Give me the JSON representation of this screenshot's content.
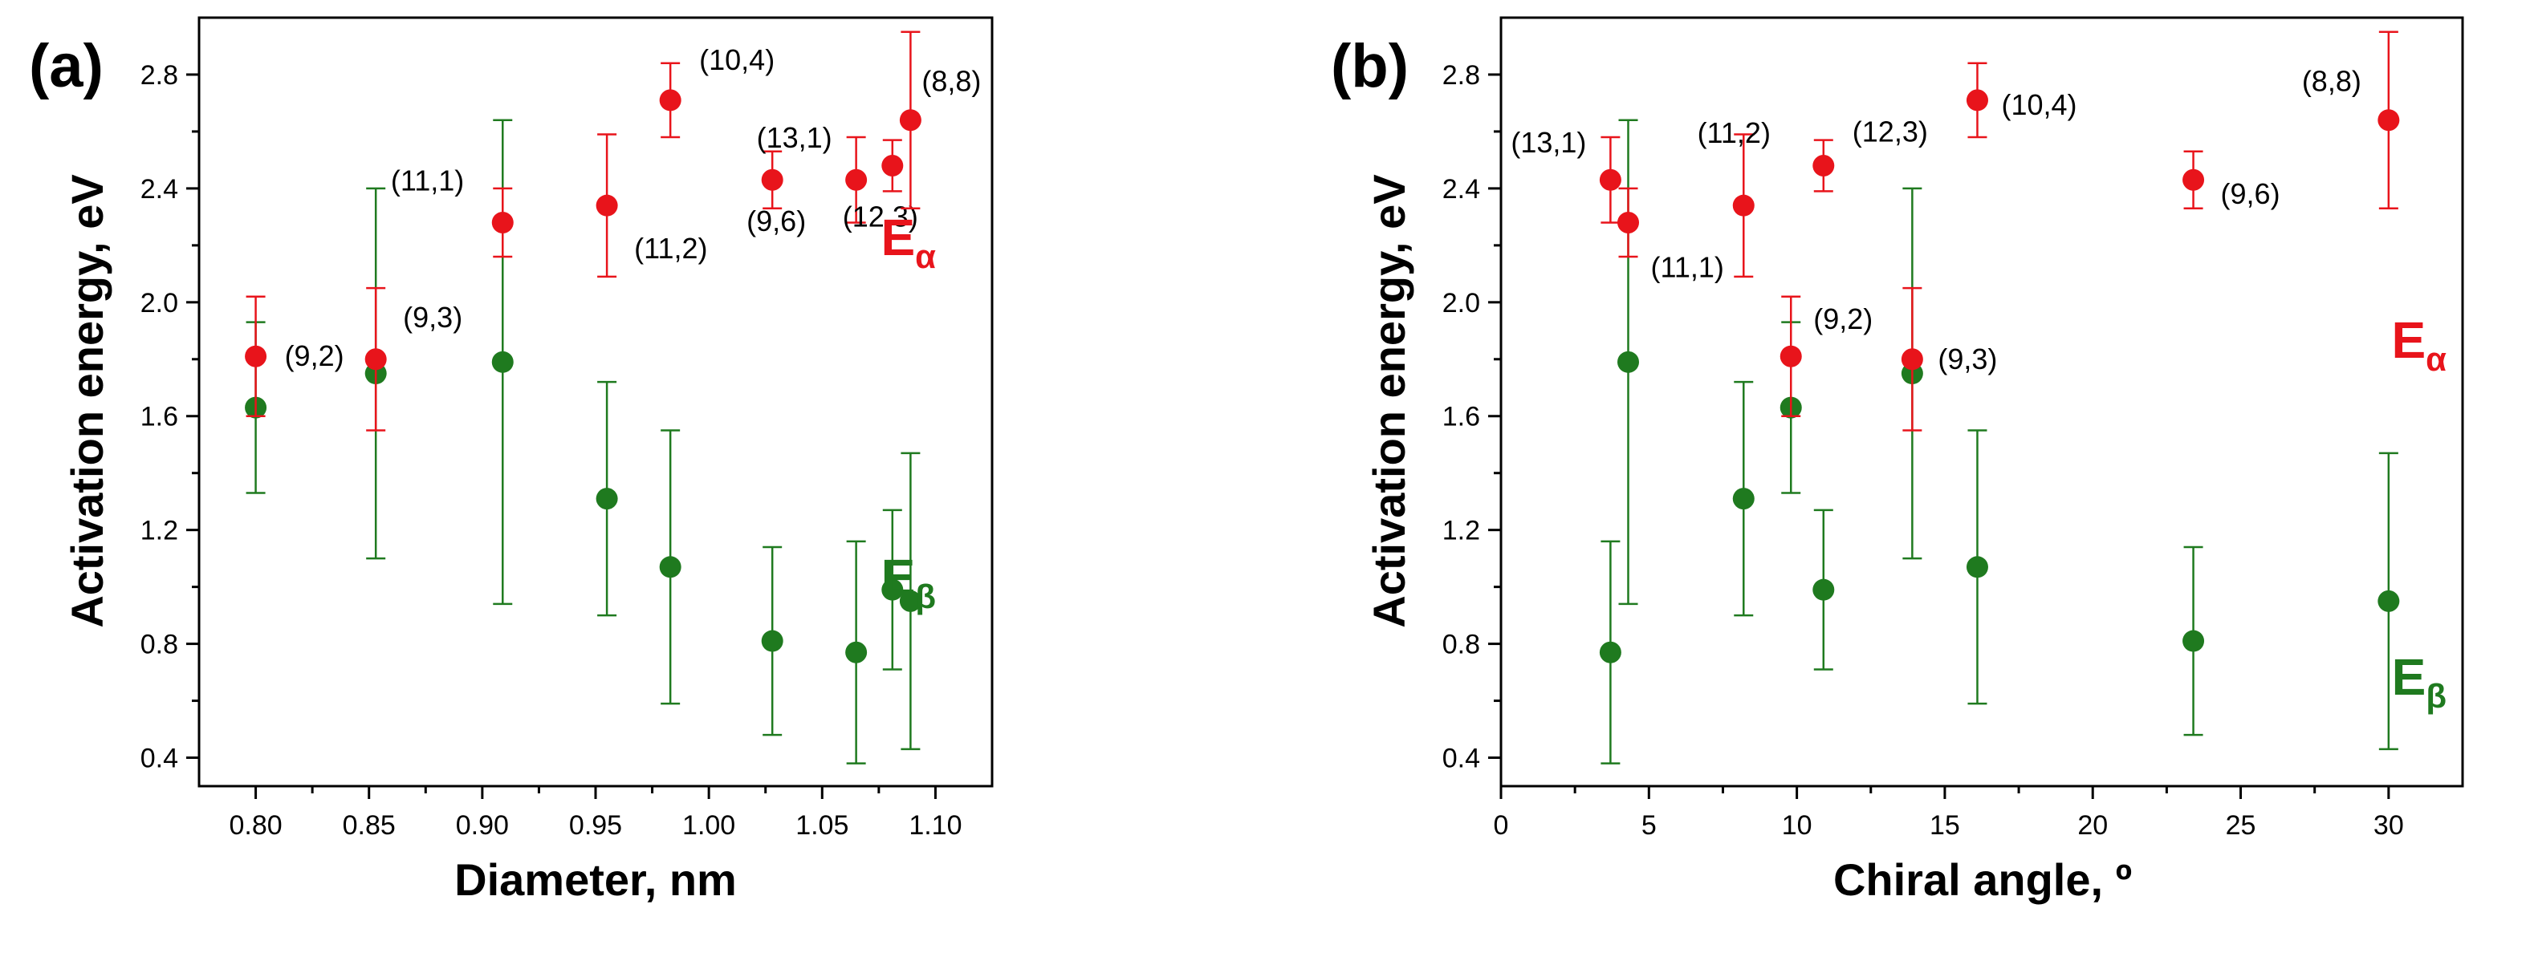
{
  "chart_data": [
    {
      "type": "scatter",
      "panel_label": "(a)",
      "xlabel": "Diameter, nm",
      "ylabel": "Activation energy, eV",
      "xlim": [
        0.775,
        1.125
      ],
      "ylim": [
        0.3,
        3.0
      ],
      "xticks": [
        0.8,
        0.85,
        0.9,
        0.95,
        1.0,
        1.05,
        1.1
      ],
      "xtick_labels": [
        "0.80",
        "0.85",
        "0.90",
        "0.95",
        "1.00",
        "1.05",
        "1.10"
      ],
      "yticks": [
        0.4,
        0.8,
        1.2,
        1.6,
        2.0,
        2.4,
        2.8
      ],
      "ytick_labels": [
        "0.4",
        "0.8",
        "1.2",
        "1.6",
        "2.0",
        "2.4",
        "2.8"
      ],
      "series": [
        {
          "name": "E_alpha",
          "label_main": "E",
          "label_sub": "α",
          "color": "#e8141b",
          "points": [
            {
              "label": "(9,2)",
              "x": 0.8,
              "y": 1.81,
              "lo": 1.6,
              "hi": 2.02
            },
            {
              "label": "(9,3)",
              "x": 0.853,
              "y": 1.8,
              "lo": 1.55,
              "hi": 2.05
            },
            {
              "label": "(11,1)",
              "x": 0.909,
              "y": 2.28,
              "lo": 2.16,
              "hi": 2.4
            },
            {
              "label": "(11,2)",
              "x": 0.955,
              "y": 2.34,
              "lo": 2.09,
              "hi": 2.59
            },
            {
              "label": "(10,4)",
              "x": 0.983,
              "y": 2.71,
              "lo": 2.58,
              "hi": 2.84
            },
            {
              "label": "(9,6)",
              "x": 1.028,
              "y": 2.43,
              "lo": 2.33,
              "hi": 2.53
            },
            {
              "label": "(13,1)",
              "x": 1.065,
              "y": 2.43,
              "lo": 2.28,
              "hi": 2.58
            },
            {
              "label": "(12,3)",
              "x": 1.081,
              "y": 2.48,
              "lo": 2.39,
              "hi": 2.57
            },
            {
              "label": "(8,8)",
              "x": 1.089,
              "y": 2.64,
              "lo": 2.33,
              "hi": 2.95
            }
          ]
        },
        {
          "name": "E_beta",
          "label_main": "E",
          "label_sub": "β",
          "color": "#1f7a1f",
          "points": [
            {
              "x": 0.8,
              "y": 1.63,
              "lo": 1.33,
              "hi": 1.93
            },
            {
              "x": 0.853,
              "y": 1.75,
              "lo": 1.1,
              "hi": 2.4
            },
            {
              "x": 0.909,
              "y": 1.79,
              "lo": 0.94,
              "hi": 2.64
            },
            {
              "x": 0.955,
              "y": 1.31,
              "lo": 0.9,
              "hi": 1.72
            },
            {
              "x": 0.983,
              "y": 1.07,
              "lo": 0.59,
              "hi": 1.55
            },
            {
              "x": 1.028,
              "y": 0.81,
              "lo": 0.48,
              "hi": 1.14
            },
            {
              "x": 1.065,
              "y": 0.77,
              "lo": 0.38,
              "hi": 1.16
            },
            {
              "x": 1.081,
              "y": 0.99,
              "lo": 0.71,
              "hi": 1.27
            },
            {
              "x": 1.089,
              "y": 0.95,
              "lo": 0.43,
              "hi": 1.47
            }
          ]
        }
      ]
    },
    {
      "type": "scatter",
      "panel_label": "(b)",
      "xlabel": "Chiral angle, º",
      "ylabel": "Activation energy, eV",
      "xlim": [
        0,
        32.5
      ],
      "ylim": [
        0.3,
        3.0
      ],
      "xticks": [
        0,
        5,
        10,
        15,
        20,
        25,
        30
      ],
      "xtick_labels": [
        "0",
        "5",
        "10",
        "15",
        "20",
        "25",
        "30"
      ],
      "yticks": [
        0.4,
        0.8,
        1.2,
        1.6,
        2.0,
        2.4,
        2.8
      ],
      "ytick_labels": [
        "0.4",
        "0.8",
        "1.2",
        "1.6",
        "2.0",
        "2.4",
        "2.8"
      ],
      "series": [
        {
          "name": "E_alpha",
          "label_main": "E",
          "label_sub": "α",
          "color": "#e8141b",
          "points": [
            {
              "label": "(13,1)",
              "x": 3.7,
              "y": 2.43,
              "lo": 2.28,
              "hi": 2.58
            },
            {
              "label": "(11,1)",
              "x": 4.3,
              "y": 2.28,
              "lo": 2.16,
              "hi": 2.4
            },
            {
              "label": "(11,2)",
              "x": 8.2,
              "y": 2.34,
              "lo": 2.09,
              "hi": 2.59
            },
            {
              "label": "(9,2)",
              "x": 9.8,
              "y": 1.81,
              "lo": 1.6,
              "hi": 2.02
            },
            {
              "label": "(12,3)",
              "x": 10.9,
              "y": 2.48,
              "lo": 2.39,
              "hi": 2.57
            },
            {
              "label": "(9,3)",
              "x": 13.9,
              "y": 1.8,
              "lo": 1.55,
              "hi": 2.05
            },
            {
              "label": "(10,4)",
              "x": 16.1,
              "y": 2.71,
              "lo": 2.58,
              "hi": 2.84
            },
            {
              "label": "(9,6)",
              "x": 23.4,
              "y": 2.43,
              "lo": 2.33,
              "hi": 2.53
            },
            {
              "label": "(8,8)",
              "x": 30.0,
              "y": 2.64,
              "lo": 2.33,
              "hi": 2.95
            }
          ]
        },
        {
          "name": "E_beta",
          "label_main": "E",
          "label_sub": "β",
          "color": "#1f7a1f",
          "points": [
            {
              "x": 3.7,
              "y": 0.77,
              "lo": 0.38,
              "hi": 1.16
            },
            {
              "x": 4.3,
              "y": 1.79,
              "lo": 0.94,
              "hi": 2.64
            },
            {
              "x": 8.2,
              "y": 1.31,
              "lo": 0.9,
              "hi": 1.72
            },
            {
              "x": 9.8,
              "y": 1.63,
              "lo": 1.33,
              "hi": 1.93
            },
            {
              "x": 10.9,
              "y": 0.99,
              "lo": 0.71,
              "hi": 1.27
            },
            {
              "x": 13.9,
              "y": 1.75,
              "lo": 1.1,
              "hi": 2.4
            },
            {
              "x": 16.1,
              "y": 1.07,
              "lo": 0.59,
              "hi": 1.55
            },
            {
              "x": 23.4,
              "y": 0.81,
              "lo": 0.48,
              "hi": 1.14
            },
            {
              "x": 30.0,
              "y": 0.95,
              "lo": 0.43,
              "hi": 1.47
            }
          ]
        }
      ]
    }
  ]
}
